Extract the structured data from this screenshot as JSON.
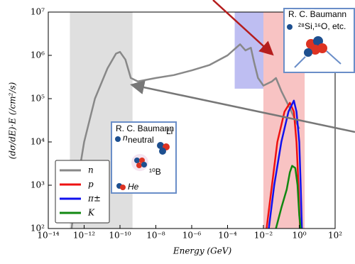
{
  "chart_data": {
    "type": "line",
    "x_label": "Energy (GeV)",
    "y_label": "(dσ/dE)·E (/cm²/s)",
    "xscale": "log",
    "yscale": "log",
    "xlim": [
      1e-14,
      100
    ],
    "ylim": [
      100,
      10000000
    ],
    "xticks": [
      {
        "value": 1e-14,
        "label": "10⁻¹⁴"
      },
      {
        "value": 1e-12,
        "label": "10⁻¹²"
      },
      {
        "value": 1e-10,
        "label": "10⁻¹⁰"
      },
      {
        "value": 1e-08,
        "label": "10⁻⁸"
      },
      {
        "value": 1e-06,
        "label": "10⁻⁶"
      },
      {
        "value": 0.0001,
        "label": "10⁻⁴"
      },
      {
        "value": 0.01,
        "label": "10⁻²"
      },
      {
        "value": 1,
        "label": "10⁰"
      },
      {
        "value": 100,
        "label": "10²"
      }
    ],
    "yticks": [
      {
        "value": 100,
        "label": "10²"
      },
      {
        "value": 1000,
        "label": "10³"
      },
      {
        "value": 10000,
        "label": "10⁴"
      },
      {
        "value": 100000,
        "label": "10⁵"
      },
      {
        "value": 1000000,
        "label": "10⁶"
      },
      {
        "value": 10000000,
        "label": "10⁷"
      }
    ],
    "legend": "lower left",
    "regions": [
      {
        "color": "#d9d9d9",
        "xlim": [
          1.6e-13,
          5e-10
        ],
        "ylim": [
          100,
          10000000
        ]
      },
      {
        "color": "#b3b3f0",
        "xlim": [
          0.00025,
          0.01
        ],
        "ylim": [
          170000,
          10000000
        ]
      },
      {
        "color": "#f7b8b8",
        "xlim": [
          0.01,
          2
        ],
        "ylim": [
          100,
          10000000
        ]
      }
    ],
    "series": [
      {
        "name": "n",
        "color": "#888888",
        "x": [
          2e-13,
          4e-13,
          1e-12,
          4e-12,
          2e-11,
          6e-11,
          1e-10,
          2e-10,
          4e-10,
          1e-09,
          1e-08,
          1e-07,
          1e-06,
          1e-05,
          0.0001,
          0.0003,
          0.0005,
          0.001,
          0.002,
          0.003,
          0.005,
          0.01,
          0.03,
          0.05,
          0.1,
          0.3,
          1
        ],
        "values": [
          100,
          1000,
          10000,
          100000,
          500000,
          1100000,
          1200000,
          800000,
          300000,
          250000,
          300000,
          350000,
          450000,
          600000,
          1000000,
          1500000,
          1800000,
          1300000,
          1500000,
          700000,
          300000,
          200000,
          250000,
          300000,
          150000,
          60000,
          20000
        ]
      },
      {
        "name": "p",
        "color": "#ee1111",
        "x": [
          0.015,
          0.03,
          0.06,
          0.15,
          0.3,
          0.5,
          0.7,
          0.9,
          1.1
        ],
        "values": [
          100,
          1000,
          10000,
          50000,
          80000,
          50000,
          10000,
          1000,
          100
        ]
      },
      {
        "name": "π±",
        "color": "#1111ee",
        "x": [
          0.02,
          0.04,
          0.1,
          0.25,
          0.5,
          0.7,
          1,
          1.2,
          1.4
        ],
        "values": [
          100,
          1000,
          10000,
          50000,
          90000,
          50000,
          10000,
          1000,
          100
        ]
      },
      {
        "name": "K",
        "color": "#118811",
        "x": [
          0.05,
          0.1,
          0.2,
          0.3,
          0.4,
          0.6,
          0.8,
          1,
          1.2
        ],
        "values": [
          100,
          300,
          800,
          2000,
          2800,
          2500,
          1000,
          200,
          100
        ]
      }
    ],
    "insets": [
      {
        "title": "R. C. Baumann",
        "sub": "Li",
        "labels": [
          "n",
          "neutral",
          "¹⁰B",
          "He"
        ]
      },
      {
        "title": "R. C. Baumann",
        "labels": [
          "²⁸Si,¹⁶O, etc."
        ]
      }
    ]
  }
}
